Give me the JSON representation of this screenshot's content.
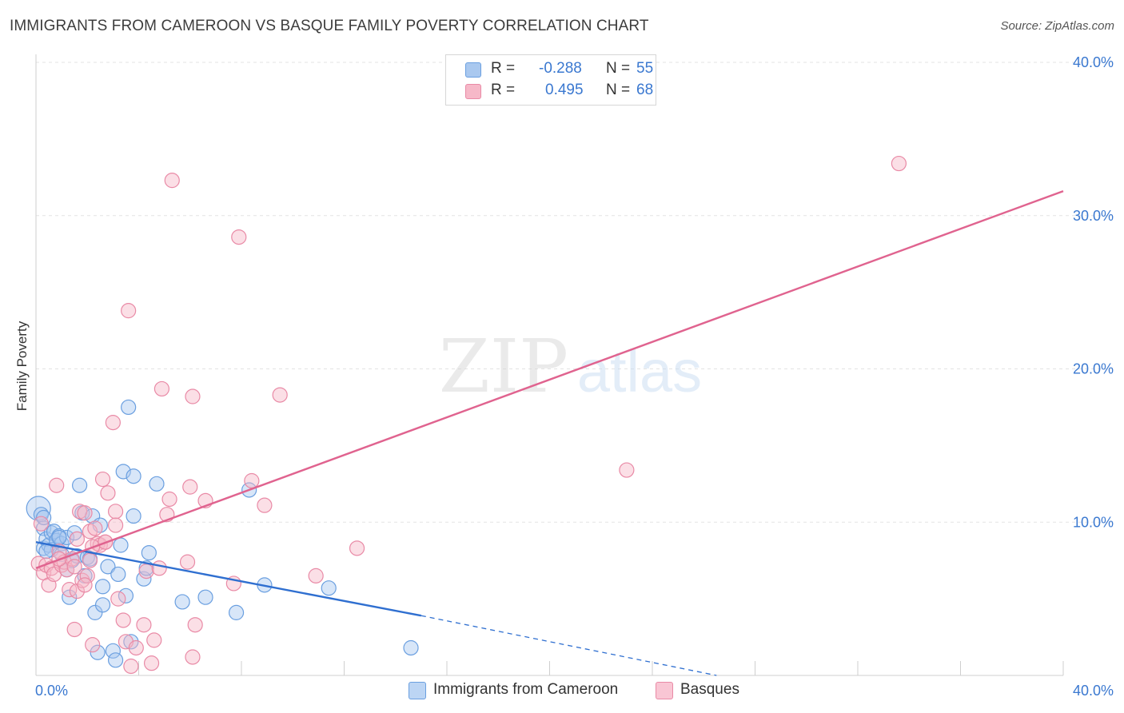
{
  "header": {
    "title": "IMMIGRANTS FROM CAMEROON VS BASQUE FAMILY POVERTY CORRELATION CHART",
    "source": "Source: ZipAtlas.com"
  },
  "watermark": {
    "zip": "ZIP",
    "atlas": "atlas"
  },
  "legend": {
    "r_label": "R =",
    "n_label": "N =",
    "rows": [
      {
        "r": "-0.288",
        "n": "55",
        "color": "#a9c8ef",
        "stroke": "#6a9fe0"
      },
      {
        "r": "0.495",
        "n": "68",
        "color": "#f6b8c8",
        "stroke": "#e98aa6"
      }
    ]
  },
  "bottom_legend": [
    {
      "label": "Immigrants from Cameroon",
      "color": "#bcd5f4",
      "stroke": "#6a9fe0"
    },
    {
      "label": "Basques",
      "color": "#f9c6d4",
      "stroke": "#e98aa6"
    }
  ],
  "chart_data": {
    "type": "scatter",
    "title": "IMMIGRANTS FROM CAMEROON VS BASQUE FAMILY POVERTY CORRELATION CHART",
    "xlabel": "",
    "ylabel": "Family Poverty",
    "xlim": [
      0,
      40
    ],
    "ylim": [
      0,
      40
    ],
    "x_tick_labels": [
      "0.0%",
      "40.0%"
    ],
    "y_ticks": [
      10,
      20,
      30,
      40
    ],
    "y_tick_labels": [
      "10.0%",
      "20.0%",
      "30.0%",
      "40.0%"
    ],
    "grid": true,
    "legend_position": "top-center",
    "series": [
      {
        "name": "Immigrants from Cameroon",
        "color": "#6a9fe0",
        "fill": "#a9c8ef",
        "r": -0.288,
        "n": 55,
        "trend": {
          "x0": 0,
          "y0": 8.7,
          "x1": 15,
          "y1": 3.9,
          "dashed_to_x": 26.5,
          "dashed_to_y": 0
        },
        "points": [
          [
            0.1,
            10.9
          ],
          [
            0.2,
            10.5
          ],
          [
            0.3,
            9.6
          ],
          [
            0.3,
            8.3
          ],
          [
            0.4,
            8.9
          ],
          [
            0.5,
            8.5
          ],
          [
            0.6,
            8.2
          ],
          [
            0.6,
            9.3
          ],
          [
            0.7,
            9.4
          ],
          [
            0.8,
            8.8
          ],
          [
            0.9,
            9.1
          ],
          [
            1.0,
            8.6
          ],
          [
            1.0,
            7.9
          ],
          [
            1.2,
            9.0
          ],
          [
            1.2,
            6.9
          ],
          [
            1.3,
            5.1
          ],
          [
            1.4,
            7.5
          ],
          [
            1.5,
            9.3
          ],
          [
            1.6,
            7.8
          ],
          [
            1.7,
            12.4
          ],
          [
            1.8,
            10.6
          ],
          [
            1.9,
            6.5
          ],
          [
            2.0,
            7.7
          ],
          [
            2.1,
            7.6
          ],
          [
            2.2,
            10.4
          ],
          [
            2.3,
            4.1
          ],
          [
            2.4,
            1.5
          ],
          [
            2.5,
            9.8
          ],
          [
            2.6,
            4.6
          ],
          [
            2.6,
            5.8
          ],
          [
            2.8,
            7.1
          ],
          [
            3.0,
            1.6
          ],
          [
            3.1,
            1.0
          ],
          [
            3.2,
            6.6
          ],
          [
            3.3,
            8.5
          ],
          [
            3.4,
            13.3
          ],
          [
            3.5,
            5.2
          ],
          [
            3.6,
            17.5
          ],
          [
            3.7,
            2.2
          ],
          [
            3.8,
            10.4
          ],
          [
            3.8,
            13.0
          ],
          [
            4.2,
            6.3
          ],
          [
            4.3,
            7.0
          ],
          [
            4.4,
            8.0
          ],
          [
            4.7,
            12.5
          ],
          [
            5.7,
            4.8
          ],
          [
            6.6,
            5.1
          ],
          [
            7.8,
            4.1
          ],
          [
            8.3,
            12.1
          ],
          [
            8.9,
            5.9
          ],
          [
            11.4,
            5.7
          ],
          [
            14.6,
            1.8
          ],
          [
            0.9,
            9.0
          ],
          [
            0.4,
            8.1
          ],
          [
            0.3,
            10.3
          ]
        ]
      },
      {
        "name": "Basques",
        "color": "#e98aa6",
        "fill": "#f6b8c8",
        "r": 0.495,
        "n": 68,
        "trend": {
          "x0": 0,
          "y0": 7.0,
          "x1": 40,
          "y1": 31.6
        },
        "points": [
          [
            0.1,
            7.3
          ],
          [
            0.2,
            9.9
          ],
          [
            0.3,
            6.7
          ],
          [
            0.4,
            7.2
          ],
          [
            0.5,
            5.9
          ],
          [
            0.6,
            7.0
          ],
          [
            0.7,
            6.6
          ],
          [
            0.8,
            12.4
          ],
          [
            0.9,
            8.1
          ],
          [
            1.0,
            7.2
          ],
          [
            1.1,
            7.4
          ],
          [
            1.2,
            6.9
          ],
          [
            1.3,
            5.6
          ],
          [
            1.4,
            7.6
          ],
          [
            1.5,
            3.0
          ],
          [
            1.6,
            8.9
          ],
          [
            1.6,
            5.5
          ],
          [
            1.7,
            10.7
          ],
          [
            1.8,
            6.2
          ],
          [
            1.9,
            10.6
          ],
          [
            2.0,
            6.5
          ],
          [
            2.1,
            9.4
          ],
          [
            2.1,
            7.5
          ],
          [
            2.2,
            2.0
          ],
          [
            2.3,
            9.6
          ],
          [
            2.4,
            8.6
          ],
          [
            2.5,
            8.5
          ],
          [
            2.6,
            12.8
          ],
          [
            2.7,
            8.7
          ],
          [
            2.8,
            11.9
          ],
          [
            3.0,
            16.5
          ],
          [
            3.1,
            10.7
          ],
          [
            3.1,
            9.8
          ],
          [
            3.2,
            5.0
          ],
          [
            3.4,
            3.6
          ],
          [
            3.5,
            2.2
          ],
          [
            3.6,
            23.8
          ],
          [
            3.7,
            0.6
          ],
          [
            3.9,
            1.8
          ],
          [
            4.2,
            3.3
          ],
          [
            4.3,
            6.8
          ],
          [
            4.5,
            0.8
          ],
          [
            4.6,
            2.3
          ],
          [
            4.8,
            7.0
          ],
          [
            4.9,
            18.7
          ],
          [
            5.1,
            10.5
          ],
          [
            5.2,
            11.5
          ],
          [
            5.3,
            32.3
          ],
          [
            5.9,
            7.4
          ],
          [
            6.0,
            12.3
          ],
          [
            6.1,
            1.2
          ],
          [
            6.1,
            18.2
          ],
          [
            6.2,
            3.3
          ],
          [
            6.6,
            11.4
          ],
          [
            7.7,
            6.0
          ],
          [
            7.9,
            28.6
          ],
          [
            8.4,
            12.7
          ],
          [
            8.9,
            11.1
          ],
          [
            9.5,
            18.3
          ],
          [
            10.9,
            6.5
          ],
          [
            12.5,
            8.3
          ],
          [
            23.0,
            13.4
          ],
          [
            33.6,
            33.4
          ],
          [
            1.5,
            7.1
          ],
          [
            2.2,
            8.4
          ],
          [
            0.9,
            7.6
          ],
          [
            2.7,
            8.7
          ],
          [
            1.9,
            5.9
          ]
        ]
      }
    ]
  }
}
